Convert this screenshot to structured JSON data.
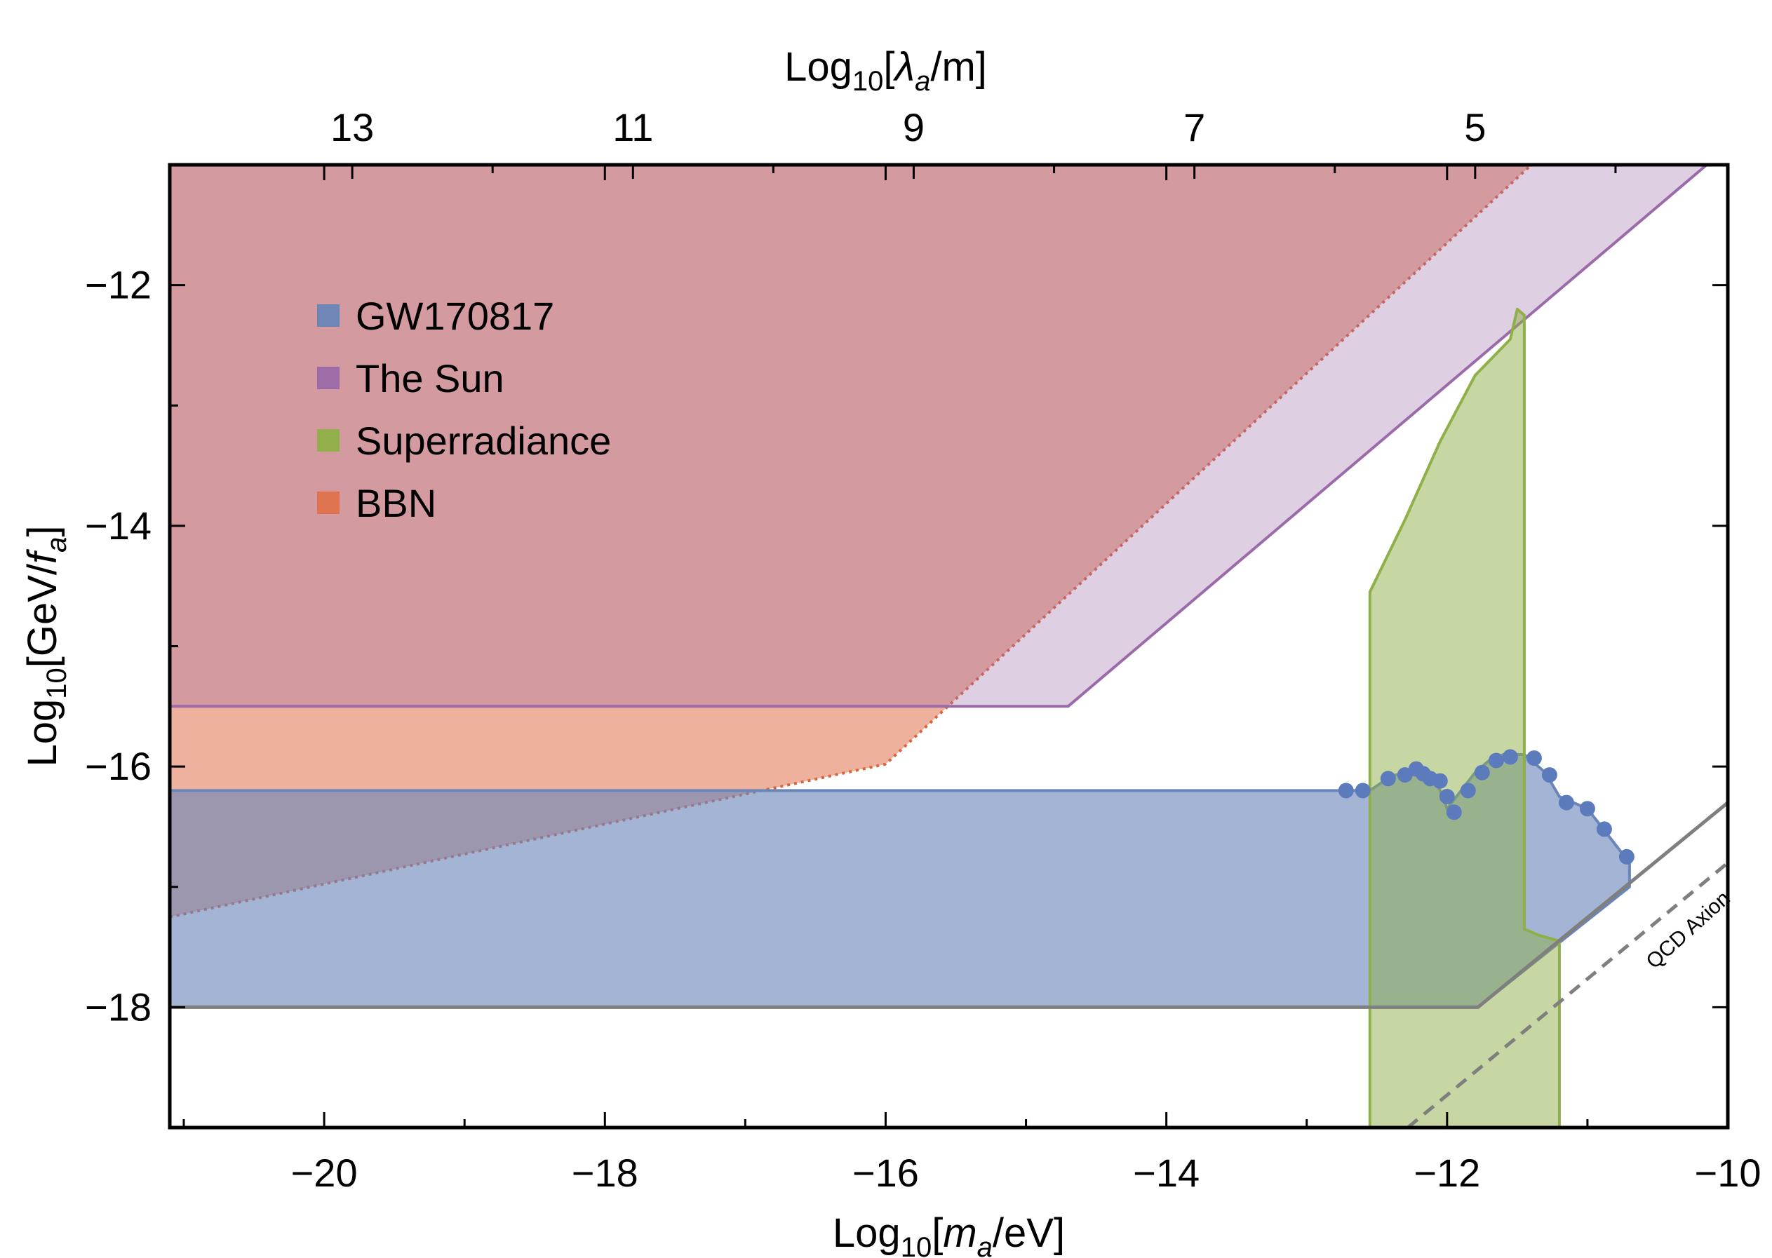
{
  "chart_data": {
    "type": "area",
    "title": "",
    "xlabel": {
      "prefix": "Log",
      "sub": "10",
      "open": "[",
      "var": "m",
      "var_sub": "a",
      "rest": "/eV]"
    },
    "ylabel": {
      "prefix": "Log",
      "sub": "10",
      "open": "[GeV/",
      "var": "f",
      "var_sub": "a",
      "rest": "]"
    },
    "x2label": {
      "prefix": "Log",
      "sub": "10",
      "open": "[",
      "var": "λ",
      "var_sub": "a",
      "rest": "/m]"
    },
    "xlim": [
      -21.1,
      -10
    ],
    "ylim": [
      -19,
      -11
    ],
    "xticks": [
      -20,
      -18,
      -16,
      -14,
      -12,
      -10
    ],
    "xtick_labels": [
      "−20",
      "−18",
      "−16",
      "−14",
      "−12",
      "−10"
    ],
    "yticks": [
      -18,
      -16,
      -14,
      -12
    ],
    "ytick_labels": [
      "−18",
      "−16",
      "−14",
      "−12"
    ],
    "x2ticks": [
      {
        "x": -19.8,
        "label": "13"
      },
      {
        "x": -17.8,
        "label": "11"
      },
      {
        "x": -15.8,
        "label": "9"
      },
      {
        "x": -13.8,
        "label": "7"
      },
      {
        "x": -11.8,
        "label": "5"
      }
    ],
    "legend": {
      "position": "top-left",
      "entries": [
        {
          "label": "GW170817",
          "color": "#6a86b9",
          "key": "gw"
        },
        {
          "label": "The Sun",
          "color": "#9b6aa8",
          "key": "sun"
        },
        {
          "label": "Superradiance",
          "color": "#8fb048",
          "key": "sr"
        },
        {
          "label": "BBN",
          "color": "#e0714c",
          "key": "bbn"
        }
      ]
    },
    "series": [
      {
        "key": "bbn",
        "fill": "#e0714c",
        "fill_opacity": 0.55,
        "stroke": "#d9643c",
        "dashed": true,
        "points": [
          [
            -21.1,
            -17.25
          ],
          [
            -16.0,
            -15.98
          ],
          [
            -11.4,
            -11.0
          ],
          [
            -21.1,
            -11.0
          ]
        ]
      },
      {
        "key": "sun",
        "fill": "#9b6aa8",
        "fill_opacity": 0.32,
        "stroke": "#9b6aa8",
        "dashed": false,
        "points": [
          [
            -21.1,
            -15.5
          ],
          [
            -14.7,
            -15.5
          ],
          [
            -10.15,
            -11.0
          ],
          [
            -21.1,
            -11.0
          ]
        ]
      },
      {
        "key": "gw",
        "fill": "#6a86b9",
        "fill_opacity": 0.62,
        "stroke": "#6a86b9",
        "dashed": false,
        "points": [
          [
            -21.1,
            -16.2
          ],
          [
            -12.72,
            -16.2
          ],
          [
            -12.55,
            -16.2
          ],
          [
            -12.4,
            -16.08
          ],
          [
            -12.3,
            -16.05
          ],
          [
            -12.22,
            -16.0
          ],
          [
            -12.18,
            -16.05
          ],
          [
            -12.1,
            -16.1
          ],
          [
            -12.05,
            -16.2
          ],
          [
            -12.0,
            -16.35
          ],
          [
            -11.9,
            -16.2
          ],
          [
            -11.8,
            -16.05
          ],
          [
            -11.7,
            -15.95
          ],
          [
            -11.6,
            -15.9
          ],
          [
            -11.45,
            -15.9
          ],
          [
            -11.3,
            -16.05
          ],
          [
            -11.2,
            -16.25
          ],
          [
            -11.0,
            -16.35
          ],
          [
            -10.9,
            -16.5
          ],
          [
            -10.7,
            -16.8
          ],
          [
            -10.7,
            -17.0
          ],
          [
            -11.78,
            -18.0
          ],
          [
            -21.1,
            -18.0
          ]
        ]
      },
      {
        "key": "sr",
        "fill": "#8fb048",
        "fill_opacity": 0.5,
        "stroke": "#8fb048",
        "dashed": false,
        "points": [
          [
            -12.55,
            -19.0
          ],
          [
            -12.55,
            -14.55
          ],
          [
            -12.3,
            -13.95
          ],
          [
            -12.05,
            -13.3
          ],
          [
            -11.8,
            -12.75
          ],
          [
            -11.55,
            -12.45
          ],
          [
            -11.5,
            -12.2
          ],
          [
            -11.45,
            -12.25
          ],
          [
            -11.45,
            -17.35
          ],
          [
            -11.35,
            -17.4
          ],
          [
            -11.2,
            -17.45
          ],
          [
            -11.2,
            -19.0
          ]
        ]
      }
    ],
    "gw_points": [
      [
        -12.72,
        -16.2
      ],
      [
        -12.6,
        -16.2
      ],
      [
        -12.42,
        -16.1
      ],
      [
        -12.3,
        -16.07
      ],
      [
        -12.22,
        -16.02
      ],
      [
        -12.17,
        -16.06
      ],
      [
        -12.12,
        -16.1
      ],
      [
        -12.05,
        -16.12
      ],
      [
        -12.0,
        -16.25
      ],
      [
        -11.95,
        -16.38
      ],
      [
        -11.85,
        -16.2
      ],
      [
        -11.75,
        -16.05
      ],
      [
        -11.65,
        -15.95
      ],
      [
        -11.55,
        -15.92
      ],
      [
        -11.38,
        -15.93
      ],
      [
        -11.27,
        -16.07
      ],
      [
        -11.15,
        -16.3
      ],
      [
        -11.0,
        -16.35
      ],
      [
        -10.88,
        -16.52
      ],
      [
        -10.72,
        -16.75
      ]
    ],
    "lines": [
      {
        "key": "gw-lower-line",
        "color": "#7f7f7f",
        "dashed": false,
        "points": [
          [
            -21.1,
            -18.0
          ],
          [
            -11.78,
            -18.0
          ],
          [
            -10.0,
            -16.3
          ]
        ]
      },
      {
        "key": "qcd-axion-line",
        "color": "#7f7f7f",
        "dashed": true,
        "points": [
          [
            -12.28,
            -19.0
          ],
          [
            -10.0,
            -16.8
          ]
        ]
      }
    ],
    "annotations": [
      {
        "text": "QCD Axion",
        "x": -10.25,
        "y": -17.4
      }
    ]
  }
}
